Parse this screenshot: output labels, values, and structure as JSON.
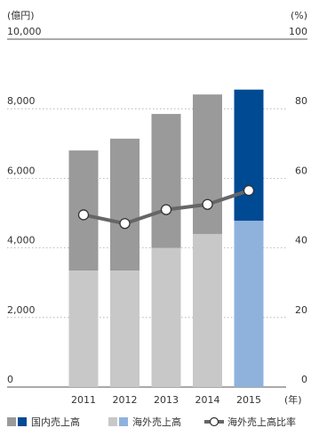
{
  "chart_data": {
    "type": "bar",
    "categories": [
      "2011",
      "2012",
      "2013",
      "2014",
      "2015"
    ],
    "x_unit_label": "(年)",
    "left_unit_label": "(億円)",
    "right_unit_label": "(%)",
    "y_left": {
      "range": [
        0,
        10000
      ],
      "ticks": [
        "0",
        "2,000",
        "4,000",
        "6,000",
        "8,000",
        "10,000"
      ],
      "tick_values": [
        0,
        2000,
        4000,
        6000,
        8000,
        10000
      ]
    },
    "y_right": {
      "range": [
        0,
        100
      ],
      "ticks": [
        "0",
        "20",
        "40",
        "60",
        "80",
        "100"
      ],
      "tick_values": [
        0,
        20,
        40,
        60,
        80,
        100
      ]
    },
    "grid": true,
    "legend_position": "bottom",
    "series": [
      {
        "name": "国内売上高",
        "kind": "stacked-bar",
        "values": [
          3450,
          3790,
          3850,
          4010,
          3770
        ],
        "colors": [
          "#9a9a9a",
          "#9a9a9a",
          "#9a9a9a",
          "#9a9a9a",
          "#004a93"
        ]
      },
      {
        "name": "海外売上高",
        "kind": "stacked-bar",
        "values": [
          3350,
          3350,
          4000,
          4400,
          4780
        ],
        "colors": [
          "#c8c8c8",
          "#c8c8c8",
          "#c8c8c8",
          "#c8c8c8",
          "#8fb2dd"
        ]
      },
      {
        "name": "海外売上高比率",
        "kind": "line",
        "axis": "right",
        "values": [
          49.5,
          47,
          51,
          52.5,
          56.5
        ],
        "color": "#666666"
      }
    ],
    "legend": [
      {
        "label": "国内売上高",
        "swatch_colors": [
          "#9a9a9a",
          "#004a93"
        ]
      },
      {
        "label": "海外売上高",
        "swatch_colors": [
          "#c8c8c8",
          "#8fb2dd"
        ]
      },
      {
        "label": "海外売上高比率",
        "swatch_colors": [
          "#666666"
        ]
      }
    ]
  }
}
